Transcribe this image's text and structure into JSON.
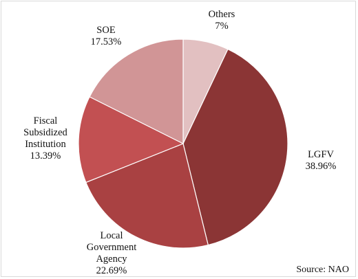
{
  "chart_data": {
    "type": "pie",
    "title": "",
    "slices": [
      {
        "label": [
          "Others"
        ],
        "value": 7,
        "display": "7%",
        "color": "#e2c0c1"
      },
      {
        "label": [
          "LGFV"
        ],
        "value": 38.96,
        "display": "38.96%",
        "color": "#8b3535"
      },
      {
        "label": [
          "Local",
          "Government",
          "Agency"
        ],
        "value": 22.69,
        "display": "22.69%",
        "color": "#a94142"
      },
      {
        "label": [
          "Fiscal",
          "Subsidized",
          "Institution"
        ],
        "value": 13.39,
        "display": "13.39%",
        "color": "#c25052"
      },
      {
        "label": [
          "SOE"
        ],
        "value": 17.53,
        "display": "17.53%",
        "color": "#d19596"
      }
    ],
    "source": "Source: NAO"
  }
}
